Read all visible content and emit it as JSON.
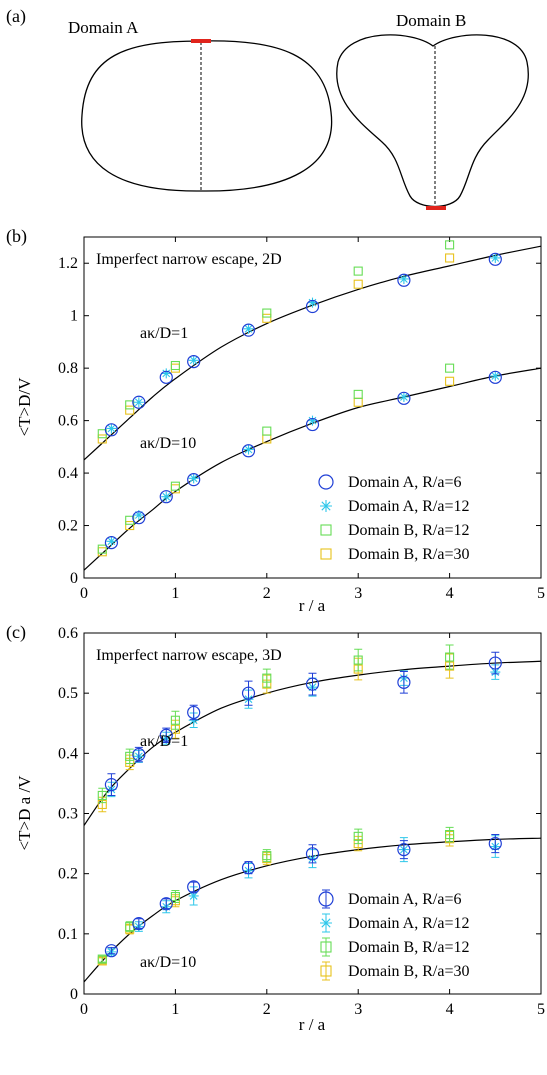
{
  "panel_a": {
    "label": "(a)",
    "domain_a_title": "Domain A",
    "domain_b_title": "Domain B"
  },
  "chart_data": [
    {
      "type": "line",
      "panel_label": "(b)",
      "title": "Imperfect  narrow escape, 2D",
      "xlabel": "r / a",
      "ylabel": "<T>D/V",
      "xlim": [
        0,
        5
      ],
      "ylim": [
        0,
        1.3
      ],
      "xticks": [
        0,
        1,
        2,
        3,
        4,
        5
      ],
      "yticks": [
        0,
        0.2,
        0.4,
        0.6,
        0.8,
        1,
        1.2
      ],
      "grid": false,
      "legend_position": "bottom-right",
      "annotations": [
        "aκ/D=1",
        "aκ/D=10"
      ],
      "theory_curves": [
        {
          "label": "aκ/D=1",
          "x": [
            0,
            0.25,
            0.5,
            0.75,
            1,
            1.5,
            2,
            2.5,
            3,
            3.5,
            4,
            4.5,
            5
          ],
          "y": [
            0.45,
            0.53,
            0.61,
            0.69,
            0.76,
            0.88,
            0.97,
            1.04,
            1.1,
            1.15,
            1.19,
            1.23,
            1.265
          ]
        },
        {
          "label": "aκ/D=10",
          "x": [
            0,
            0.25,
            0.5,
            0.75,
            1,
            1.5,
            2,
            2.5,
            3,
            3.5,
            4,
            4.5,
            5
          ],
          "y": [
            0.03,
            0.11,
            0.19,
            0.26,
            0.33,
            0.44,
            0.52,
            0.59,
            0.65,
            0.69,
            0.73,
            0.77,
            0.8
          ]
        }
      ],
      "series": [
        {
          "name": "Domain A, R/a=6",
          "marker": "circle",
          "color": "#1f3fd6",
          "x": [
            0.3,
            0.6,
            0.9,
            1.2,
            1.8,
            2.5,
            3.5,
            4.5,
            0.3,
            0.6,
            0.9,
            1.2,
            1.8,
            2.5,
            3.5,
            4.5
          ],
          "y": [
            0.565,
            0.67,
            0.765,
            0.825,
            0.945,
            1.035,
            1.135,
            1.215,
            0.135,
            0.23,
            0.31,
            0.375,
            0.485,
            0.585,
            0.685,
            0.765
          ]
        },
        {
          "name": "Domain A, R/a=12",
          "marker": "asterisk",
          "color": "#2ec7ea",
          "x": [
            0.3,
            0.6,
            0.9,
            1.2,
            1.8,
            2.5,
            3.5,
            4.5,
            0.3,
            0.6,
            0.9,
            1.2,
            1.8,
            2.5,
            3.5,
            4.5
          ],
          "y": [
            0.57,
            0.67,
            0.78,
            0.83,
            0.95,
            1.05,
            1.14,
            1.22,
            0.14,
            0.24,
            0.31,
            0.38,
            0.49,
            0.6,
            0.69,
            0.77
          ]
        },
        {
          "name": "Domain B, R/a=12",
          "marker": "square",
          "color": "#66dd55",
          "x": [
            0.2,
            0.5,
            1.0,
            2.0,
            3.0,
            4.0,
            0.2,
            0.5,
            1.0,
            2.0,
            3.0,
            4.0
          ],
          "y": [
            0.55,
            0.66,
            0.81,
            1.01,
            1.17,
            1.27,
            0.11,
            0.22,
            0.35,
            0.56,
            0.7,
            0.8
          ]
        },
        {
          "name": "Domain B, R/a=30",
          "marker": "square",
          "color": "#e8c21c",
          "x": [
            0.2,
            0.5,
            1.0,
            2.0,
            3.0,
            4.0,
            0.2,
            0.5,
            1.0,
            2.0,
            3.0,
            4.0
          ],
          "y": [
            0.53,
            0.64,
            0.8,
            0.99,
            1.12,
            1.22,
            0.1,
            0.2,
            0.34,
            0.53,
            0.67,
            0.75
          ]
        }
      ]
    },
    {
      "type": "line",
      "panel_label": "(c)",
      "title": "Imperfect narrow escape, 3D",
      "xlabel": "r / a",
      "ylabel": "<T>D a /V",
      "xlim": [
        0,
        5
      ],
      "ylim": [
        0,
        0.6
      ],
      "xticks": [
        0,
        1,
        2,
        3,
        4,
        5
      ],
      "yticks": [
        0,
        0.1,
        0.2,
        0.3,
        0.4,
        0.5,
        0.6
      ],
      "grid": false,
      "legend_position": "bottom-right",
      "annotations": [
        "aκ/D=1",
        "aκ/D=10"
      ],
      "theory_curves": [
        {
          "label": "aκ/D=1",
          "x": [
            0,
            0.25,
            0.5,
            0.75,
            1,
            1.5,
            2,
            2.5,
            3,
            3.5,
            4,
            4.5,
            5
          ],
          "y": [
            0.28,
            0.335,
            0.375,
            0.41,
            0.435,
            0.475,
            0.5,
            0.518,
            0.53,
            0.539,
            0.545,
            0.55,
            0.553
          ]
        },
        {
          "label": "aκ/D=10",
          "x": [
            0,
            0.25,
            0.5,
            0.75,
            1,
            1.5,
            2,
            2.5,
            3,
            3.5,
            4,
            4.5,
            5
          ],
          "y": [
            0.02,
            0.063,
            0.1,
            0.13,
            0.155,
            0.19,
            0.213,
            0.229,
            0.24,
            0.248,
            0.253,
            0.257,
            0.259
          ]
        }
      ],
      "series": [
        {
          "name": "Domain A, R/a=6",
          "marker": "circle",
          "color": "#1f3fd6",
          "x": [
            0.3,
            0.6,
            0.9,
            1.2,
            1.8,
            2.5,
            3.5,
            4.5,
            0.3,
            0.6,
            0.9,
            1.2,
            1.8,
            2.5,
            3.5,
            4.5
          ],
          "y": [
            0.348,
            0.398,
            0.43,
            0.468,
            0.5,
            0.515,
            0.518,
            0.55,
            0.072,
            0.117,
            0.15,
            0.178,
            0.21,
            0.233,
            0.24,
            0.25
          ],
          "err": [
            0.018,
            0.012,
            0.012,
            0.012,
            0.02,
            0.018,
            0.018,
            0.018,
            0.005,
            0.008,
            0.008,
            0.008,
            0.01,
            0.015,
            0.015,
            0.015
          ]
        },
        {
          "name": "Domain A, R/a=12",
          "marker": "asterisk",
          "color": "#2ec7ea",
          "x": [
            0.3,
            0.6,
            0.9,
            1.2,
            1.8,
            2.5,
            3.5,
            4.5,
            0.3,
            0.6,
            0.9,
            1.2,
            1.8,
            2.5,
            3.5,
            4.5
          ],
          "y": [
            0.34,
            0.395,
            0.425,
            0.455,
            0.49,
            0.51,
            0.525,
            0.535,
            0.07,
            0.112,
            0.145,
            0.163,
            0.205,
            0.225,
            0.24,
            0.245
          ],
          "err": [
            0.012,
            0.01,
            0.01,
            0.012,
            0.015,
            0.015,
            0.012,
            0.012,
            0.005,
            0.008,
            0.01,
            0.015,
            0.012,
            0.015,
            0.02,
            0.018
          ]
        },
        {
          "name": "Domain B, R/a=12",
          "marker": "square",
          "color": "#66dd55",
          "x": [
            0.2,
            0.5,
            1.0,
            2.0,
            3.0,
            4.0,
            0.2,
            0.5,
            1.0,
            2.0,
            3.0,
            4.0
          ],
          "y": [
            0.33,
            0.395,
            0.455,
            0.525,
            0.555,
            0.56,
            0.058,
            0.112,
            0.162,
            0.23,
            0.262,
            0.265
          ],
          "err": [
            0.012,
            0.012,
            0.015,
            0.015,
            0.018,
            0.02,
            0.005,
            0.008,
            0.01,
            0.01,
            0.012,
            0.012
          ]
        },
        {
          "name": "Domain B, R/a=30",
          "marker": "square",
          "color": "#e8c21c",
          "x": [
            0.2,
            0.5,
            1.0,
            2.0,
            3.0,
            4.0,
            0.2,
            0.5,
            1.0,
            2.0,
            3.0,
            4.0
          ],
          "y": [
            0.315,
            0.385,
            0.44,
            0.515,
            0.54,
            0.545,
            0.055,
            0.108,
            0.155,
            0.225,
            0.25,
            0.258
          ],
          "err": [
            0.012,
            0.012,
            0.015,
            0.015,
            0.018,
            0.02,
            0.005,
            0.008,
            0.01,
            0.01,
            0.012,
            0.012
          ]
        }
      ]
    }
  ],
  "colors": {
    "axis": "#000000",
    "highlight": "#e0241c"
  }
}
